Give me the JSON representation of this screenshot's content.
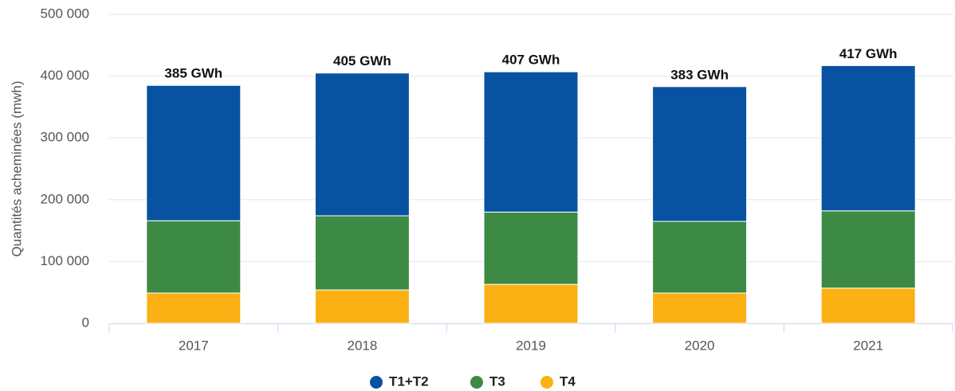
{
  "chart_data": {
    "type": "stacked_bar",
    "y_label": "Quantités acheminées (mwh)",
    "categories": [
      "2017",
      "2018",
      "2019",
      "2020",
      "2021"
    ],
    "series": [
      {
        "name": "T1+T2",
        "color": "#0753a1",
        "values": [
          219000,
          231000,
          227000,
          218000,
          235000
        ]
      },
      {
        "name": "T3",
        "color": "#3d8a45",
        "values": [
          117000,
          120000,
          117000,
          116000,
          125000
        ]
      },
      {
        "name": "T4",
        "color": "#fbb114",
        "values": [
          49000,
          54000,
          63000,
          49000,
          57000
        ]
      }
    ],
    "totals": [
      385000,
      405000,
      407000,
      383000,
      417000
    ],
    "total_labels": [
      "385 GWh",
      "405 GWh",
      "407 GWh",
      "383 GWh",
      "417 GWh"
    ],
    "ylim": [
      0,
      500000
    ],
    "yticks": [
      0,
      {
        "value": 100000,
        "label": "100 000"
      },
      {
        "value": 200000,
        "label": "200 000"
      },
      {
        "value": 300000,
        "label": "300 000"
      },
      {
        "value": 400000,
        "label": "400 000"
      },
      {
        "value": 500000,
        "label": "500 000"
      }
    ],
    "grid": true
  }
}
